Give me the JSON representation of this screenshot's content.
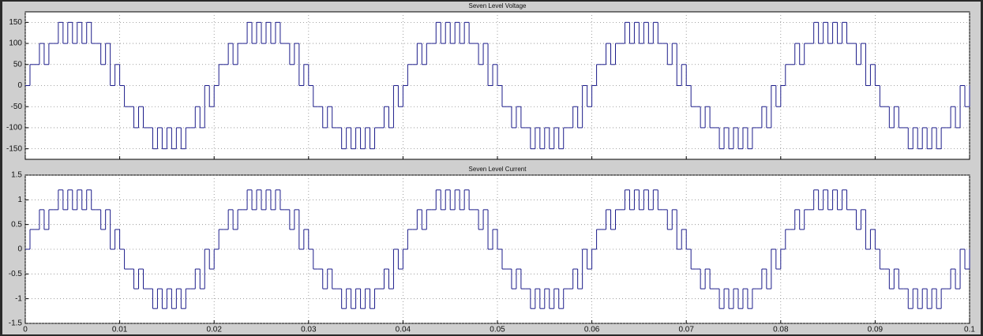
{
  "chart_data": [
    {
      "type": "line",
      "title": "Seven Level Voltage",
      "color": "#1c1c8a",
      "step": "post",
      "grid": true,
      "show_xtick_labels": false,
      "xlim": [
        0,
        0.1
      ],
      "xticks": [
        0,
        0.01,
        0.02,
        0.03,
        0.04,
        0.05,
        0.06,
        0.07,
        0.08,
        0.09,
        0.1
      ],
      "ylim": [
        -175,
        175
      ],
      "yticks": [
        -150,
        -100,
        -50,
        0,
        50,
        100,
        150
      ],
      "x": [
        0,
        0.0005,
        0.001,
        0.0015,
        0.002,
        0.0025,
        0.003,
        0.0035,
        0.004,
        0.0045,
        0.005,
        0.0055,
        0.006,
        0.0065,
        0.007,
        0.0075,
        0.008,
        0.0085,
        0.009,
        0.0095,
        0.01,
        0.0105,
        0.011,
        0.0115,
        0.012,
        0.0125,
        0.013,
        0.0135,
        0.014,
        0.0145,
        0.015,
        0.0155,
        0.016,
        0.0165,
        0.017,
        0.0175,
        0.018,
        0.0185,
        0.019,
        0.0195,
        0.02,
        0.0205,
        0.021,
        0.0215,
        0.022,
        0.0225,
        0.023,
        0.0235,
        0.024,
        0.0245,
        0.025,
        0.0255,
        0.026,
        0.0265,
        0.027,
        0.0275,
        0.028,
        0.0285,
        0.029,
        0.0295,
        0.03,
        0.0305,
        0.031,
        0.0315,
        0.032,
        0.0325,
        0.033,
        0.0335,
        0.034,
        0.0345,
        0.035,
        0.0355,
        0.036,
        0.0365,
        0.037,
        0.0375,
        0.038,
        0.0385,
        0.039,
        0.0395,
        0.04,
        0.0405,
        0.041,
        0.0415,
        0.042,
        0.0425,
        0.043,
        0.0435,
        0.044,
        0.0445,
        0.045,
        0.0455,
        0.046,
        0.0465,
        0.047,
        0.0475,
        0.048,
        0.0485,
        0.049,
        0.0495,
        0.05,
        0.0505,
        0.051,
        0.0515,
        0.052,
        0.0525,
        0.053,
        0.0535,
        0.054,
        0.0545,
        0.055,
        0.0555,
        0.056,
        0.0565,
        0.057,
        0.0575,
        0.058,
        0.0585,
        0.059,
        0.0595,
        0.06,
        0.0605,
        0.061,
        0.0615,
        0.062,
        0.0625,
        0.063,
        0.0635,
        0.064,
        0.0645,
        0.065,
        0.0655,
        0.066,
        0.0665,
        0.067,
        0.0675,
        0.068,
        0.0685,
        0.069,
        0.0695,
        0.07,
        0.0705,
        0.071,
        0.0715,
        0.072,
        0.0725,
        0.073,
        0.0735,
        0.074,
        0.0745,
        0.075,
        0.0755,
        0.076,
        0.0765,
        0.077,
        0.0775,
        0.078,
        0.0785,
        0.079,
        0.0795,
        0.08,
        0.0805,
        0.081,
        0.0815,
        0.082,
        0.0825,
        0.083,
        0.0835,
        0.084,
        0.0845,
        0.085,
        0.0855,
        0.086,
        0.0865,
        0.087,
        0.0875,
        0.088,
        0.0885,
        0.089,
        0.0895,
        0.09,
        0.0905,
        0.091,
        0.0915,
        0.092,
        0.0925,
        0.093,
        0.0935,
        0.094,
        0.0945,
        0.095,
        0.0955,
        0.096,
        0.0965,
        0.097,
        0.0975,
        0.098,
        0.0985,
        0.099,
        0.0995,
        0.1
      ],
      "values": [
        0,
        50,
        50,
        100,
        50,
        100,
        100,
        150,
        100,
        150,
        100,
        150,
        100,
        150,
        100,
        100,
        50,
        100,
        0,
        50,
        0,
        -50,
        -50,
        -100,
        -50,
        -100,
        -100,
        -150,
        -100,
        -150,
        -100,
        -150,
        -100,
        -150,
        -100,
        -100,
        -50,
        -100,
        0,
        -50,
        0,
        50,
        50,
        100,
        50,
        100,
        100,
        150,
        100,
        150,
        100,
        150,
        100,
        150,
        100,
        100,
        50,
        100,
        0,
        50,
        0,
        -50,
        -50,
        -100,
        -50,
        -100,
        -100,
        -150,
        -100,
        -150,
        -100,
        -150,
        -100,
        -150,
        -100,
        -100,
        -50,
        -100,
        0,
        -50,
        0,
        50,
        50,
        100,
        50,
        100,
        100,
        150,
        100,
        150,
        100,
        150,
        100,
        150,
        100,
        100,
        50,
        100,
        0,
        50,
        0,
        -50,
        -50,
        -100,
        -50,
        -100,
        -100,
        -150,
        -100,
        -150,
        -100,
        -150,
        -100,
        -150,
        -100,
        -100,
        -50,
        -100,
        0,
        -50,
        0,
        50,
        50,
        100,
        50,
        100,
        100,
        150,
        100,
        150,
        100,
        150,
        100,
        150,
        100,
        100,
        50,
        100,
        0,
        50,
        0,
        -50,
        -50,
        -100,
        -50,
        -100,
        -100,
        -150,
        -100,
        -150,
        -100,
        -150,
        -100,
        -150,
        -100,
        -100,
        -50,
        -100,
        0,
        -50,
        0,
        50,
        50,
        100,
        50,
        100,
        100,
        150,
        100,
        150,
        100,
        150,
        100,
        150,
        100,
        100,
        50,
        100,
        0,
        50,
        0,
        -50,
        -50,
        -100,
        -50,
        -100,
        -100,
        -150,
        -100,
        -150,
        -100,
        -150,
        -100,
        -150,
        -100,
        -100,
        -50,
        -100,
        0,
        -50,
        0
      ]
    },
    {
      "type": "line",
      "title": "Seven Level Current",
      "color": "#1c1c8a",
      "step": "post",
      "grid": true,
      "show_xtick_labels": true,
      "xlim": [
        0,
        0.1
      ],
      "xticks": [
        0,
        0.01,
        0.02,
        0.03,
        0.04,
        0.05,
        0.06,
        0.07,
        0.08,
        0.09,
        0.1
      ],
      "ylim": [
        -1.5,
        1.5
      ],
      "yticks": [
        -1.5,
        -1,
        -0.5,
        0,
        0.5,
        1,
        1.5
      ],
      "x": [
        0,
        0.0005,
        0.001,
        0.0015,
        0.002,
        0.0025,
        0.003,
        0.0035,
        0.004,
        0.0045,
        0.005,
        0.0055,
        0.006,
        0.0065,
        0.007,
        0.0075,
        0.008,
        0.0085,
        0.009,
        0.0095,
        0.01,
        0.0105,
        0.011,
        0.0115,
        0.012,
        0.0125,
        0.013,
        0.0135,
        0.014,
        0.0145,
        0.015,
        0.0155,
        0.016,
        0.0165,
        0.017,
        0.0175,
        0.018,
        0.0185,
        0.019,
        0.0195,
        0.02,
        0.0205,
        0.021,
        0.0215,
        0.022,
        0.0225,
        0.023,
        0.0235,
        0.024,
        0.0245,
        0.025,
        0.0255,
        0.026,
        0.0265,
        0.027,
        0.0275,
        0.028,
        0.0285,
        0.029,
        0.0295,
        0.03,
        0.0305,
        0.031,
        0.0315,
        0.032,
        0.0325,
        0.033,
        0.0335,
        0.034,
        0.0345,
        0.035,
        0.0355,
        0.036,
        0.0365,
        0.037,
        0.0375,
        0.038,
        0.0385,
        0.039,
        0.0395,
        0.04,
        0.0405,
        0.041,
        0.0415,
        0.042,
        0.0425,
        0.043,
        0.0435,
        0.044,
        0.0445,
        0.045,
        0.0455,
        0.046,
        0.0465,
        0.047,
        0.0475,
        0.048,
        0.0485,
        0.049,
        0.0495,
        0.05,
        0.0505,
        0.051,
        0.0515,
        0.052,
        0.0525,
        0.053,
        0.0535,
        0.054,
        0.0545,
        0.055,
        0.0555,
        0.056,
        0.0565,
        0.057,
        0.0575,
        0.058,
        0.0585,
        0.059,
        0.0595,
        0.06,
        0.0605,
        0.061,
        0.0615,
        0.062,
        0.0625,
        0.063,
        0.0635,
        0.064,
        0.0645,
        0.065,
        0.0655,
        0.066,
        0.0665,
        0.067,
        0.0675,
        0.068,
        0.0685,
        0.069,
        0.0695,
        0.07,
        0.0705,
        0.071,
        0.0715,
        0.072,
        0.0725,
        0.073,
        0.0735,
        0.074,
        0.0745,
        0.075,
        0.0755,
        0.076,
        0.0765,
        0.077,
        0.0775,
        0.078,
        0.0785,
        0.079,
        0.0795,
        0.08,
        0.0805,
        0.081,
        0.0815,
        0.082,
        0.0825,
        0.083,
        0.0835,
        0.084,
        0.0845,
        0.085,
        0.0855,
        0.086,
        0.0865,
        0.087,
        0.0875,
        0.088,
        0.0885,
        0.089,
        0.0895,
        0.09,
        0.0905,
        0.091,
        0.0915,
        0.092,
        0.0925,
        0.093,
        0.0935,
        0.094,
        0.0945,
        0.095,
        0.0955,
        0.096,
        0.0965,
        0.097,
        0.0975,
        0.098,
        0.0985,
        0.099,
        0.0995,
        0.1
      ],
      "values": [
        0,
        0.4,
        0.4,
        0.8,
        0.4,
        0.8,
        0.8,
        1.2,
        0.8,
        1.2,
        0.8,
        1.2,
        0.8,
        1.2,
        0.8,
        0.8,
        0.4,
        0.8,
        0,
        0.4,
        0,
        -0.4,
        -0.4,
        -0.8,
        -0.4,
        -0.8,
        -0.8,
        -1.2,
        -0.8,
        -1.2,
        -0.8,
        -1.2,
        -0.8,
        -1.2,
        -0.8,
        -0.8,
        -0.4,
        -0.8,
        0,
        -0.4,
        0,
        0.4,
        0.4,
        0.8,
        0.4,
        0.8,
        0.8,
        1.2,
        0.8,
        1.2,
        0.8,
        1.2,
        0.8,
        1.2,
        0.8,
        0.8,
        0.4,
        0.8,
        0,
        0.4,
        0,
        -0.4,
        -0.4,
        -0.8,
        -0.4,
        -0.8,
        -0.8,
        -1.2,
        -0.8,
        -1.2,
        -0.8,
        -1.2,
        -0.8,
        -1.2,
        -0.8,
        -0.8,
        -0.4,
        -0.8,
        0,
        -0.4,
        0,
        0.4,
        0.4,
        0.8,
        0.4,
        0.8,
        0.8,
        1.2,
        0.8,
        1.2,
        0.8,
        1.2,
        0.8,
        1.2,
        0.8,
        0.8,
        0.4,
        0.8,
        0,
        0.4,
        0,
        -0.4,
        -0.4,
        -0.8,
        -0.4,
        -0.8,
        -0.8,
        -1.2,
        -0.8,
        -1.2,
        -0.8,
        -1.2,
        -0.8,
        -1.2,
        -0.8,
        -0.8,
        -0.4,
        -0.8,
        0,
        -0.4,
        0,
        0.4,
        0.4,
        0.8,
        0.4,
        0.8,
        0.8,
        1.2,
        0.8,
        1.2,
        0.8,
        1.2,
        0.8,
        1.2,
        0.8,
        0.8,
        0.4,
        0.8,
        0,
        0.4,
        0,
        -0.4,
        -0.4,
        -0.8,
        -0.4,
        -0.8,
        -0.8,
        -1.2,
        -0.8,
        -1.2,
        -0.8,
        -1.2,
        -0.8,
        -1.2,
        -0.8,
        -0.8,
        -0.4,
        -0.8,
        0,
        -0.4,
        0,
        0.4,
        0.4,
        0.8,
        0.4,
        0.8,
        0.8,
        1.2,
        0.8,
        1.2,
        0.8,
        1.2,
        0.8,
        1.2,
        0.8,
        0.8,
        0.4,
        0.8,
        0,
        0.4,
        0,
        -0.4,
        -0.4,
        -0.8,
        -0.4,
        -0.8,
        -0.8,
        -1.2,
        -0.8,
        -1.2,
        -0.8,
        -1.2,
        -0.8,
        -1.2,
        -0.8,
        -0.8,
        -0.4,
        -0.8,
        0,
        -0.4,
        0
      ]
    }
  ]
}
